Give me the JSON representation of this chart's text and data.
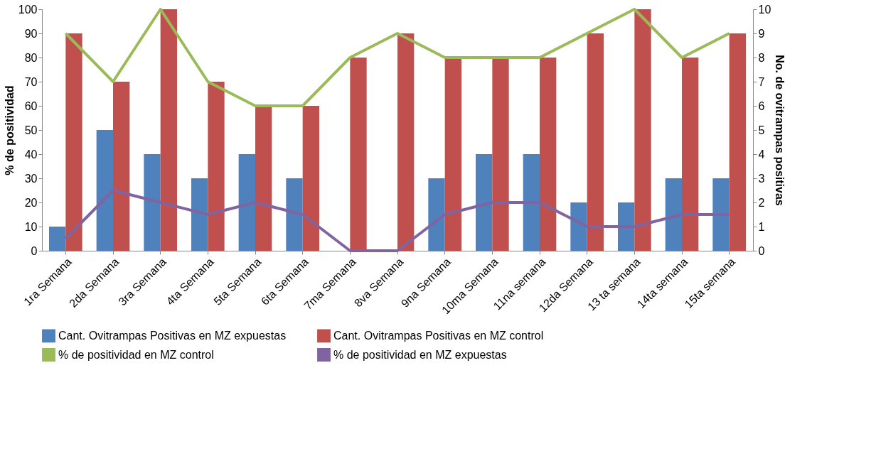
{
  "chart_data": {
    "type": "bar",
    "categories": [
      "1ra Semana",
      "2da Semana",
      "3ra Semana",
      "4ta Semana",
      "5ta Semana",
      "6ta Semana",
      "7ma Semana",
      "8va Semana",
      "9na Semana",
      "10ma Semana",
      "11na semana",
      "12da Semana",
      "13 ta semana",
      "14ta semana",
      "15ta semana"
    ],
    "series": [
      {
        "name": "Cant. Ovitrampas Positivas en MZ expuestas",
        "color": "#4f81bd",
        "axis": "y2",
        "values": [
          1,
          5,
          4,
          3,
          4,
          3,
          0,
          0,
          3,
          4,
          4,
          2,
          2,
          3,
          3
        ]
      },
      {
        "name": "Cant. Ovitrampas Positivas  en MZ control",
        "color": "#c0504d",
        "axis": "y2",
        "values": [
          9,
          7,
          10,
          7,
          6,
          6,
          8,
          9,
          8,
          8,
          8,
          9,
          10,
          8,
          9
        ]
      },
      {
        "name": "% de positividad  en MZ control",
        "color": "#9bbb59",
        "type": "line",
        "values": [
          90,
          70,
          100,
          70,
          60,
          60,
          80,
          90,
          80,
          80,
          80,
          90,
          100,
          80,
          90
        ]
      },
      {
        "name": "% de positividad en MZ expuestas",
        "color": "#8064a2",
        "type": "line",
        "values": [
          5,
          25,
          20,
          15,
          20,
          15,
          0,
          0,
          15,
          20,
          20,
          10,
          10,
          15,
          15
        ]
      }
    ],
    "ylabel": "% de positividad",
    "y2label": "No. de ovitrampas positivas",
    "ylim": [
      0,
      100
    ],
    "yticks": [
      0,
      10,
      20,
      30,
      40,
      50,
      60,
      70,
      80,
      90,
      100
    ],
    "y2lim": [
      0,
      10
    ],
    "y2ticks": [
      0,
      1,
      2,
      3,
      4,
      5,
      6,
      7,
      8,
      9,
      10
    ],
    "legend": "bottom",
    "grid": false,
    "marker": "none",
    "line_style": "solid"
  }
}
